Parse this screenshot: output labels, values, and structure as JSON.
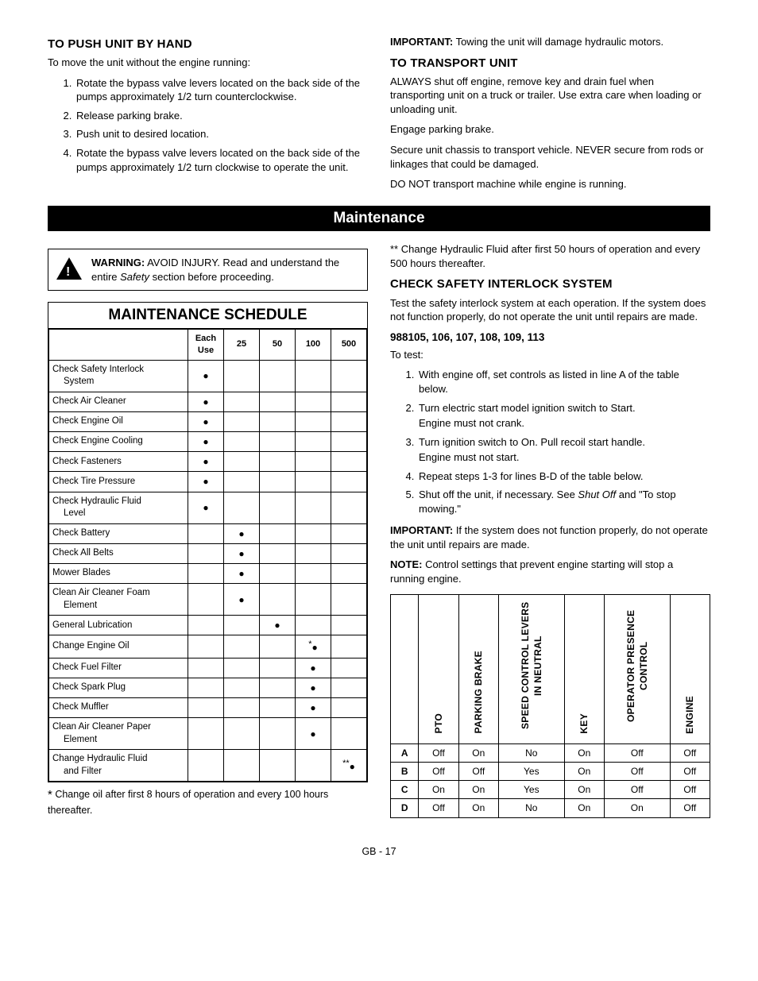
{
  "page_footer": "GB - 17",
  "section_top": {
    "left": {
      "heading": "TO PUSH UNIT BY HAND",
      "intro": "To move the unit without the engine running:",
      "steps": [
        "Rotate the bypass valve levers located on the back side of the pumps approximately 1/2 turn counterclockwise.",
        "Release parking brake.",
        "Push unit to desired location.",
        "Rotate the bypass valve levers located on the back side of the pumps approximately 1/2 turn clockwise to operate the unit."
      ]
    },
    "right": {
      "important_label": "IMPORTANT:",
      "important_text": " Towing the unit will damage hydraulic motors.",
      "heading": "TO TRANSPORT UNIT",
      "paras": [
        "ALWAYS shut off engine, remove key and drain fuel when transporting unit on a truck or trailer. Use extra care when loading or unloading unit.",
        "Engage parking brake.",
        "Secure unit chassis to transport vehicle. NEVER secure from rods or linkages that could be damaged.",
        "DO NOT transport machine while engine is running."
      ]
    }
  },
  "maintenance_bar": "Maintenance",
  "warning": {
    "label": "WARNING:",
    "text_before_italic": " AVOID INJURY. Read and understand the entire ",
    "italic": "Safety",
    "text_after_italic": " section before proceeding."
  },
  "schedule": {
    "title": "MAINTENANCE SCHEDULE",
    "headers": [
      "",
      "Each Use",
      "25",
      "50",
      "100",
      "500"
    ],
    "rows": [
      {
        "item": "Check Safety Interlock System",
        "indent": "System",
        "marks": [
          "●",
          "",
          "",
          "",
          ""
        ]
      },
      {
        "item": "Check Air Cleaner",
        "marks": [
          "●",
          "",
          "",
          "",
          ""
        ]
      },
      {
        "item": "Check Engine Oil",
        "marks": [
          "●",
          "",
          "",
          "",
          ""
        ]
      },
      {
        "item": "Check Engine Cooling",
        "marks": [
          "●",
          "",
          "",
          "",
          ""
        ]
      },
      {
        "item": "Check Fasteners",
        "marks": [
          "●",
          "",
          "",
          "",
          ""
        ]
      },
      {
        "item": "Check Tire Pressure",
        "marks": [
          "●",
          "",
          "",
          "",
          ""
        ]
      },
      {
        "item": "Check Hydraulic Fluid Level",
        "indent": "Level",
        "marks": [
          "●",
          "",
          "",
          "",
          ""
        ]
      },
      {
        "item": "Check Battery",
        "marks": [
          "",
          "●",
          "",
          "",
          ""
        ]
      },
      {
        "item": "Check All Belts",
        "marks": [
          "",
          "●",
          "",
          "",
          ""
        ]
      },
      {
        "item": "Mower Blades",
        "marks": [
          "",
          "●",
          "",
          "",
          ""
        ]
      },
      {
        "item": "Clean Air Cleaner Foam Element",
        "indent": "Element",
        "marks": [
          "",
          "●",
          "",
          "",
          ""
        ]
      },
      {
        "item": "General Lubrication",
        "marks": [
          "",
          "",
          "●",
          "",
          ""
        ]
      },
      {
        "item": "Change Engine Oil",
        "marks": [
          "",
          "",
          "",
          "*●",
          ""
        ]
      },
      {
        "item": "Check Fuel Filter",
        "marks": [
          "",
          "",
          "",
          "●",
          ""
        ]
      },
      {
        "item": "Check Spark Plug",
        "marks": [
          "",
          "",
          "",
          "●",
          ""
        ]
      },
      {
        "item": "Check Muffler",
        "marks": [
          "",
          "",
          "",
          "●",
          ""
        ]
      },
      {
        "item": "Clean Air Cleaner Paper Element",
        "indent": "Element",
        "marks": [
          "",
          "",
          "",
          "●",
          ""
        ]
      },
      {
        "item": "Change Hydraulic Fluid and Filter",
        "indent": "and Filter",
        "marks": [
          "",
          "",
          "",
          "",
          "**●"
        ]
      }
    ],
    "footnote_star": "*",
    "footnote": " Change oil after first 8 hours of operation and every 100 hours thereafter."
  },
  "right_lower": {
    "dblstar": "**",
    "dblstar_text": " Change Hydraulic Fluid after first 50 hours of operation and every 500 hours thereafter.",
    "heading": "CHECK SAFETY INTERLOCK SYSTEM",
    "para": "Test the safety interlock system at each operation. If the system does not function properly, do not operate the unit until repairs are made.",
    "models": "988105, 106, 107, 108, 109, 113",
    "to_test": "To test:",
    "steps": [
      {
        "main": "With engine off, set controls as listed in line A of the table below."
      },
      {
        "main": "Turn electric start model ignition switch to Start.",
        "note": "Engine must not crank."
      },
      {
        "main": "Turn ignition switch to On. Pull recoil start handle.",
        "note": "Engine must not start."
      },
      {
        "main": "Repeat steps 1-3 for lines B-D of the table below."
      },
      {
        "main": "Shut off the unit, if necessary. See ",
        "italic": "Shut Off",
        "after": " and \"To stop mowing.\""
      }
    ],
    "important_label": "IMPORTANT:",
    "important_text": " If the system does not function properly, do not operate the unit until repairs are made.",
    "note_label": "NOTE:",
    "note_text": " Control settings that prevent engine starting will stop a running engine.",
    "interlock_table": {
      "col_headers": [
        "",
        "PTO",
        "PARKING BRAKE",
        "SPEED CONTROL LEVERS IN NEUTRAL",
        "KEY",
        "OPERATOR PRESENCE CONTROL",
        "ENGINE"
      ],
      "rows": [
        {
          "label": "A",
          "cells": [
            "Off",
            "On",
            "No",
            "On",
            "Off",
            "Off"
          ]
        },
        {
          "label": "B",
          "cells": [
            "Off",
            "Off",
            "Yes",
            "On",
            "Off",
            "Off"
          ]
        },
        {
          "label": "C",
          "cells": [
            "On",
            "On",
            "Yes",
            "On",
            "Off",
            "Off"
          ]
        },
        {
          "label": "D",
          "cells": [
            "Off",
            "On",
            "No",
            "On",
            "On",
            "Off"
          ]
        }
      ]
    }
  }
}
